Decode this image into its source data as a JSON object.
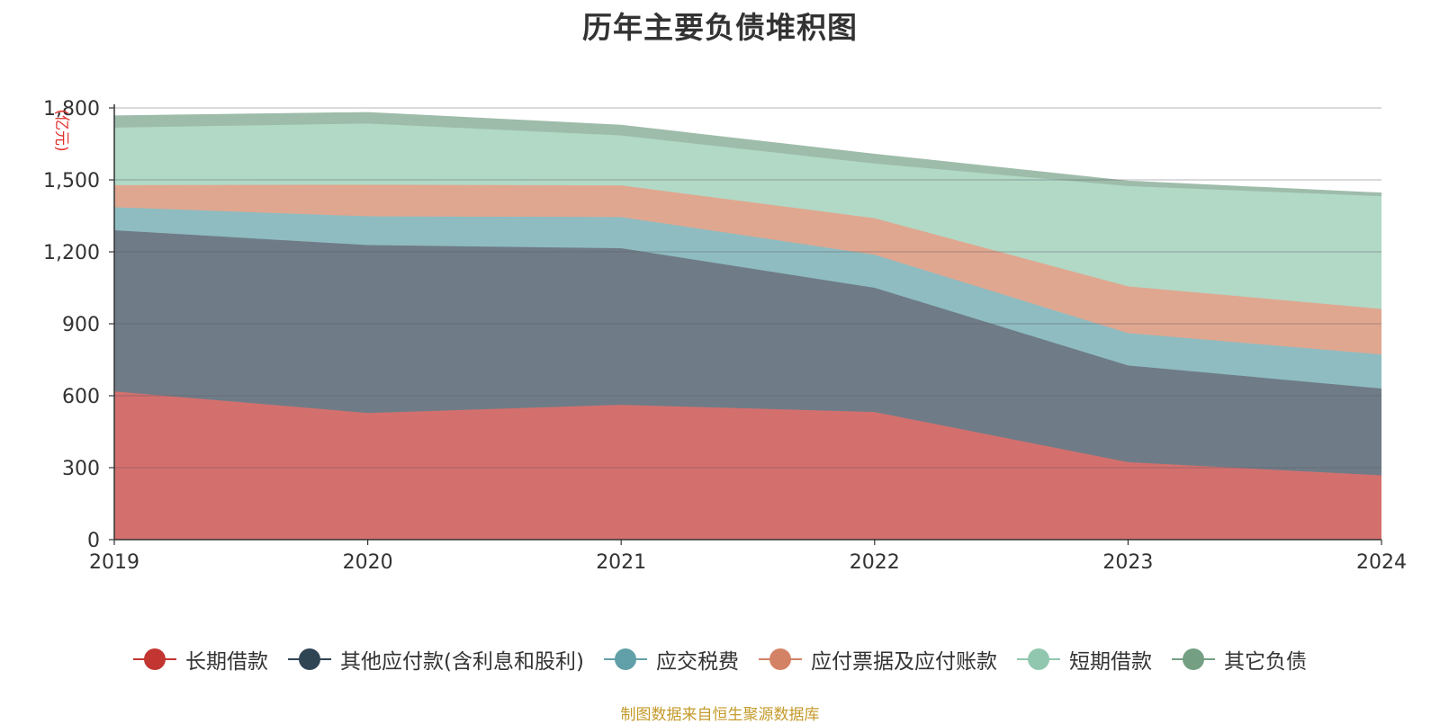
{
  "chart_data": {
    "type": "area",
    "stacked": true,
    "title": "历年主要负债堆积图",
    "ylabel": "(亿元)",
    "xlabel": "",
    "categories": [
      "2019",
      "2020",
      "2021",
      "2022",
      "2023",
      "2024"
    ],
    "ylim": [
      0,
      1800
    ],
    "yticks": [
      0,
      300,
      600,
      900,
      1200,
      1500,
      1800
    ],
    "ytick_labels": [
      "0",
      "300",
      "600",
      "900",
      "1,200",
      "1,500",
      "1,800"
    ],
    "grid": true,
    "legend_position": "bottom",
    "series": [
      {
        "name": "长期借款",
        "color": "#c23531",
        "fill": "#d3706e",
        "values": [
          618,
          528,
          562,
          532,
          323,
          268
        ]
      },
      {
        "name": "其他应付款(含利息和股利)",
        "color": "#2f4554",
        "fill": "#6f7c87",
        "values": [
          672,
          700,
          653,
          518,
          403,
          362
        ]
      },
      {
        "name": "应交税费",
        "color": "#61a0a8",
        "fill": "#8fbcc1",
        "values": [
          96,
          120,
          130,
          138,
          135,
          142
        ]
      },
      {
        "name": "应付票据及应付账款",
        "color": "#d48265",
        "fill": "#e0a790",
        "values": [
          92,
          132,
          132,
          152,
          195,
          190
        ]
      },
      {
        "name": "短期借款",
        "color": "#91c7ae",
        "fill": "#b1d9c6",
        "values": [
          240,
          255,
          208,
          228,
          418,
          470
        ]
      },
      {
        "name": "其它负债",
        "color": "#749f83",
        "fill": "#9ebcaa",
        "values": [
          48,
          45,
          42,
          38,
          20,
          12
        ]
      }
    ],
    "source_note": "制图数据来自恒生聚源数据库"
  }
}
